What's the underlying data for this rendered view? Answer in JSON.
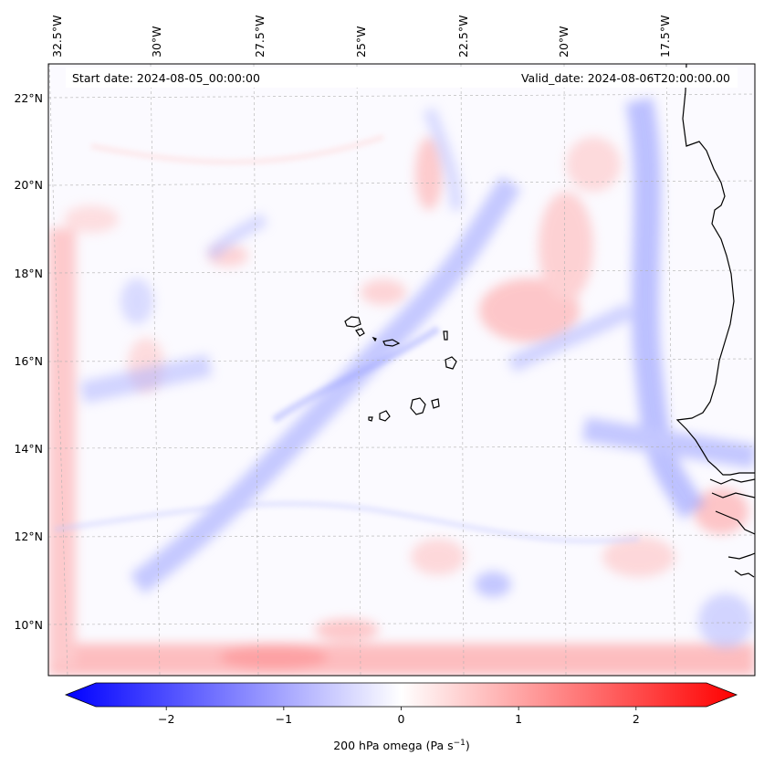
{
  "header": {
    "start_date": "Start date: 2024-08-05_00:00:00",
    "valid_date": "Valid_date: 2024-08-06T20:00:00.00"
  },
  "axes": {
    "lon_labels": [
      "32.5°W",
      "30°W",
      "27.5°W",
      "25°W",
      "22.5°W",
      "20°W",
      "17.5°W"
    ],
    "lat_labels": [
      "22°N",
      "20°N",
      "18°N",
      "16°N",
      "14°N",
      "12°N",
      "10°N"
    ]
  },
  "colorbar": {
    "label_main": "200 hPa omega (Pa s",
    "label_sup": "−1",
    "label_end": ")",
    "ticks": [
      "−2",
      "−1",
      "0",
      "1",
      "2"
    ],
    "tick_values": [
      -2,
      -1,
      0,
      1,
      2
    ],
    "range": [
      -2.6,
      2.6
    ],
    "colors": {
      "min": "#0000ff",
      "mid": "#ffffff",
      "max": "#ff0000"
    }
  },
  "colors": {
    "coastline": "#000000",
    "gridline": "#b0b0b0",
    "ascent_blue": "#6f79ff",
    "descent_red": "#ff7b7b"
  }
}
